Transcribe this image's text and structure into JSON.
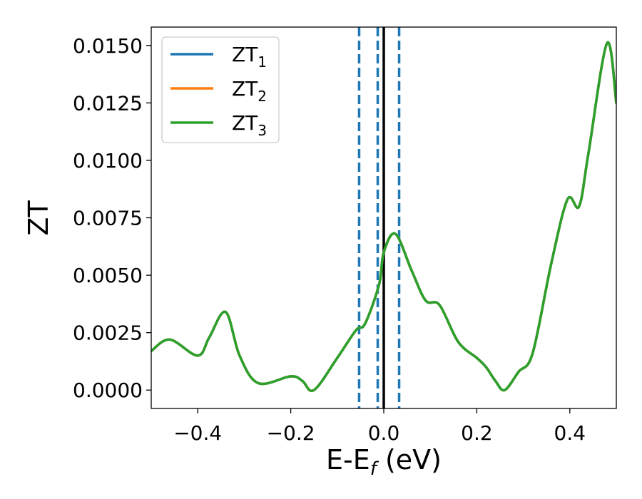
{
  "chart_data": {
    "type": "line",
    "xlabel": {
      "main": "E-E",
      "sub": "f",
      "tail": " (eV)"
    },
    "ylabel": "ZT",
    "xlim": [
      -0.5,
      0.5
    ],
    "ylim": [
      -0.0008,
      0.0158
    ],
    "x_ticks": [
      -0.4,
      -0.2,
      0.0,
      0.2,
      0.4
    ],
    "x_tick_labels": [
      "−0.4",
      "−0.2",
      "0.0",
      "0.2",
      "0.4"
    ],
    "y_ticks": [
      0.0,
      0.0025,
      0.005,
      0.0075,
      0.01,
      0.0125,
      0.015
    ],
    "y_tick_labels": [
      "0.0000",
      "0.0025",
      "0.0050",
      "0.0075",
      "0.0100",
      "0.0125",
      "0.0150"
    ],
    "grid": false,
    "legend_position": "top-left",
    "series": [
      {
        "name": "ZT",
        "sub": "1",
        "color": "#1f77b4",
        "x": [
          -0.5,
          -0.46,
          -0.4,
          -0.375,
          -0.34,
          -0.31,
          -0.27,
          -0.2,
          -0.175,
          -0.15,
          -0.1,
          -0.06,
          -0.04,
          -0.01,
          0.0,
          0.025,
          0.06,
          0.09,
          0.12,
          0.16,
          0.2,
          0.22,
          0.24,
          0.26,
          0.29,
          0.32,
          0.36,
          0.395,
          0.42,
          0.44,
          0.48,
          0.5
        ],
        "y": [
          0.0017,
          0.0022,
          0.0015,
          0.0023,
          0.0034,
          0.0015,
          0.0003,
          0.0006,
          0.0004,
          0.0,
          0.0014,
          0.0026,
          0.0029,
          0.0046,
          0.006,
          0.0068,
          0.0052,
          0.0039,
          0.0037,
          0.0021,
          0.0014,
          0.001,
          0.0004,
          0.0,
          0.0008,
          0.0016,
          0.0055,
          0.0083,
          0.008,
          0.0103,
          0.0151,
          0.0125
        ]
      },
      {
        "name": "ZT",
        "sub": "2",
        "color": "#ff7f0e",
        "x": [
          -0.5,
          -0.46,
          -0.4,
          -0.375,
          -0.34,
          -0.31,
          -0.27,
          -0.2,
          -0.175,
          -0.15,
          -0.1,
          -0.06,
          -0.04,
          -0.01,
          0.0,
          0.025,
          0.06,
          0.09,
          0.12,
          0.16,
          0.2,
          0.22,
          0.24,
          0.26,
          0.29,
          0.32,
          0.36,
          0.395,
          0.42,
          0.44,
          0.48,
          0.5
        ],
        "y": [
          0.0017,
          0.0022,
          0.0015,
          0.0023,
          0.0034,
          0.0015,
          0.0003,
          0.0006,
          0.0004,
          0.0,
          0.0014,
          0.0026,
          0.0029,
          0.0046,
          0.006,
          0.0068,
          0.0052,
          0.0039,
          0.0037,
          0.0021,
          0.0014,
          0.001,
          0.0004,
          0.0,
          0.0008,
          0.0016,
          0.0055,
          0.0083,
          0.008,
          0.0103,
          0.0151,
          0.0125
        ]
      },
      {
        "name": "ZT",
        "sub": "3",
        "color": "#2ca02c",
        "x": [
          -0.5,
          -0.46,
          -0.4,
          -0.375,
          -0.34,
          -0.31,
          -0.27,
          -0.2,
          -0.175,
          -0.15,
          -0.1,
          -0.06,
          -0.04,
          -0.01,
          0.0,
          0.025,
          0.06,
          0.09,
          0.12,
          0.16,
          0.2,
          0.22,
          0.24,
          0.26,
          0.29,
          0.32,
          0.36,
          0.395,
          0.42,
          0.44,
          0.48,
          0.5
        ],
        "y": [
          0.0017,
          0.0022,
          0.0015,
          0.0023,
          0.0034,
          0.0015,
          0.0003,
          0.0006,
          0.0004,
          0.0,
          0.0014,
          0.0026,
          0.0029,
          0.0046,
          0.006,
          0.0068,
          0.0052,
          0.0039,
          0.0037,
          0.0021,
          0.0014,
          0.001,
          0.0004,
          0.0,
          0.0008,
          0.0016,
          0.0055,
          0.0083,
          0.008,
          0.0103,
          0.0151,
          0.0125
        ]
      }
    ],
    "vertical_lines": [
      {
        "x": -0.053,
        "style": "dashed",
        "color": "#1f77b4"
      },
      {
        "x": -0.013,
        "style": "dashed",
        "color": "#1f77b4"
      },
      {
        "x": 0.033,
        "style": "dashed",
        "color": "#1f77b4"
      },
      {
        "x": 0.0,
        "style": "solid",
        "color": "#000000"
      }
    ]
  }
}
